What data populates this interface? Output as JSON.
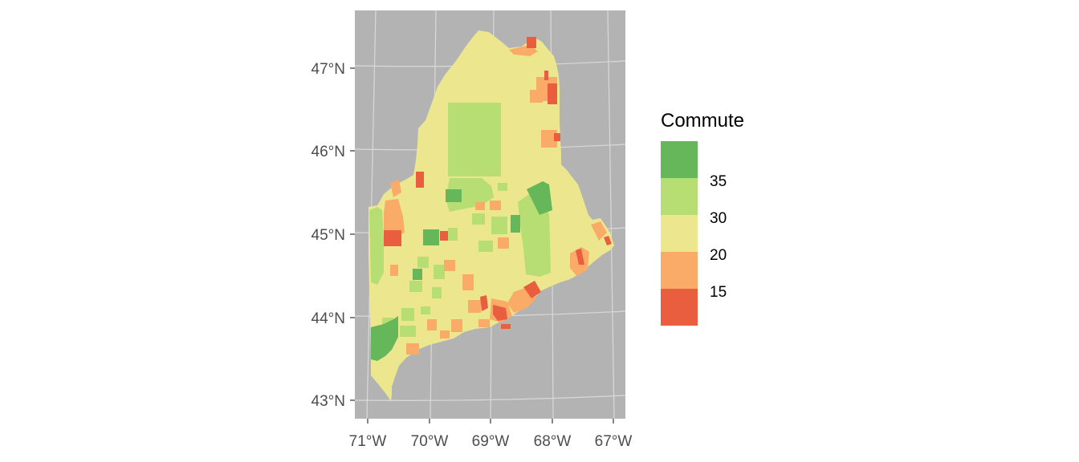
{
  "map": {
    "y_ticks": [
      "47°N",
      "46°N",
      "45°N",
      "44°N",
      "43°N"
    ],
    "x_ticks": [
      "71°W",
      "70°W",
      "69°W",
      "68°W",
      "67°W"
    ],
    "panel_background": "#b3b3b3",
    "gridline_color": "#d9d9d9",
    "region_colors": {
      "dark_green": "#66b65a",
      "light_green": "#b6de72",
      "yellow": "#ece78f",
      "orange": "#fbab68",
      "red": "#e85e3f"
    }
  },
  "legend": {
    "title": "Commute",
    "labels": [
      "35",
      "30",
      "20",
      "15"
    ],
    "colors": [
      "#66b65a",
      "#b6de72",
      "#ece78f",
      "#fbab68",
      "#e85e3f"
    ]
  }
}
